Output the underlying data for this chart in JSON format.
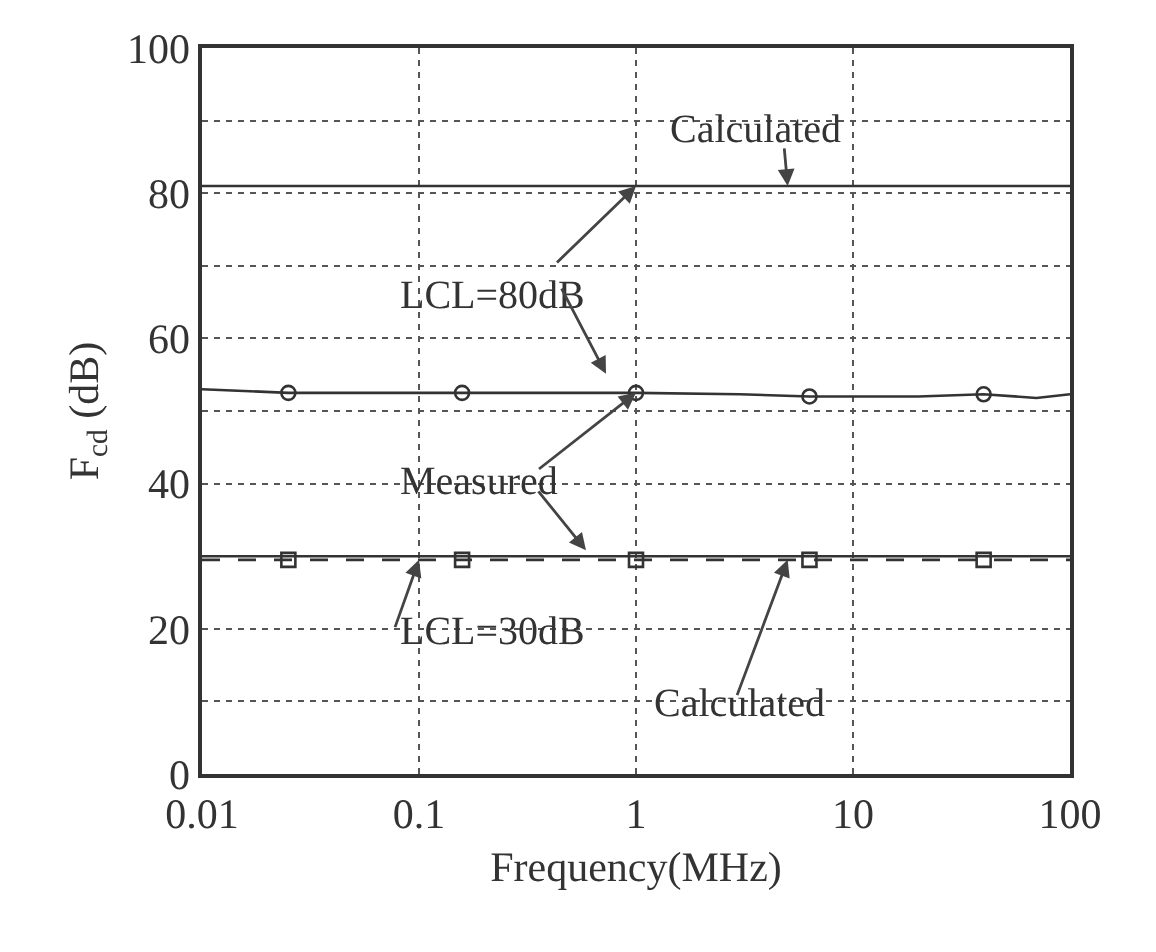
{
  "chart_data": {
    "type": "line",
    "xlabel": "Frequency(MHz)",
    "ylabel": "F$_{cd}$ (dB)",
    "log": "x",
    "xlim": [
      0.01,
      100
    ],
    "xticks": [
      0.01,
      0.1,
      1,
      10,
      100
    ],
    "ylim": [
      0,
      100
    ],
    "yticks": [
      0,
      {
        "value": 10,
        "label": null
      },
      20,
      {
        "value": 30,
        "label": null
      },
      40,
      {
        "value": 50,
        "label": null
      },
      60,
      {
        "value": 70,
        "label": null
      },
      80,
      {
        "value": 90,
        "label": null
      },
      100
    ],
    "grid": true,
    "series": [
      {
        "color": "#333333",
        "line_style": "solid",
        "x": [
          0.01,
          100
        ],
        "values": [
          81,
          81
        ]
      },
      {
        "color": "#333333",
        "line_style": "solid",
        "x": [
          0.01,
          0.025,
          0.158,
          1,
          3,
          6.3,
          20,
          40,
          70,
          100
        ],
        "values": [
          53,
          52.5,
          52.5,
          52.5,
          52.3,
          52,
          52,
          52.3,
          51.8,
          52.3
        ]
      },
      {
        "type": "scatter",
        "color": "#333333",
        "marker": "circle",
        "x": [
          0.025,
          0.158,
          1,
          6.3,
          40
        ],
        "values": [
          52.5,
          52.5,
          52.5,
          52,
          52.3
        ]
      },
      {
        "color": "#333333",
        "line_style": "solid",
        "x": [
          0.01,
          100
        ],
        "values": [
          30,
          30
        ]
      },
      {
        "color": "#333333",
        "line_style": "dashed",
        "x": [
          0.01,
          100
        ],
        "values": [
          29.5,
          29.5
        ]
      },
      {
        "type": "scatter",
        "color": "#333333",
        "marker": "square",
        "x": [
          0.025,
          0.158,
          1,
          6.3,
          40
        ],
        "values": [
          29.5,
          29.5,
          29.5,
          29.5,
          29.5
        ]
      }
    ],
    "annotations": [
      {
        "text": "Calculated",
        "x": 5,
        "y": 81
      },
      {
        "text": "LCL=80dB",
        "x": 1,
        "y": 81
      },
      {
        "text": "Measured",
        "x": 1,
        "y": 52.5
      },
      {
        "text": "LCL=30dB",
        "x": 0.1,
        "y": 29.5
      },
      {
        "text": "Calculated",
        "x": 5,
        "y": 29.5
      }
    ]
  }
}
